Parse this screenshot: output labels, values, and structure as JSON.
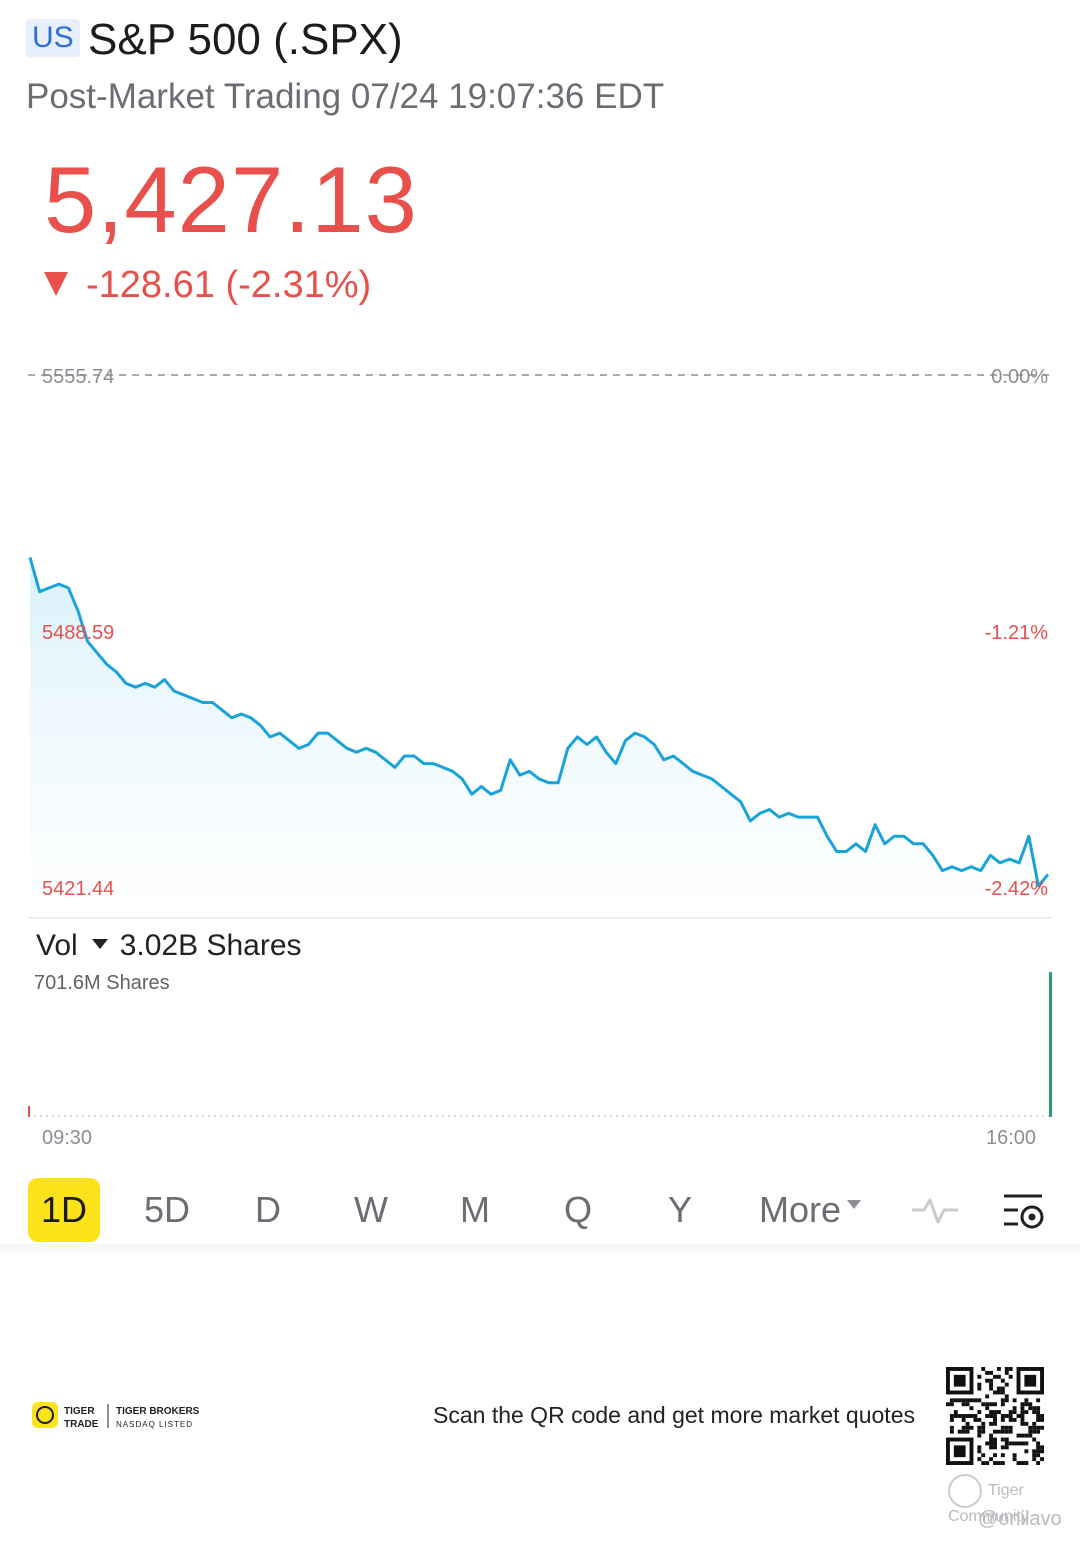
{
  "header": {
    "region": "US",
    "title": "S&P 500 (.SPX)",
    "session": "Post-Market Trading 07/24 19:07:36 EDT",
    "price": "5,427.13",
    "change": "-128.61 (-2.31%)"
  },
  "colors": {
    "down": "#e8504b",
    "line": "#1aa3d9",
    "active_period": "#fbe21a",
    "badge_bg": "#e6effb",
    "badge_text": "#2f6fd6"
  },
  "chart": {
    "left_top_label": "5555.74",
    "left_mid_label": "5488.59",
    "left_bottom_label": "5421.44",
    "right_top_label": "0.00%",
    "right_mid_label": "-1.21%",
    "right_bottom_label": "-2.42%"
  },
  "chart_data": {
    "type": "line",
    "ylim": [
      5421.44,
      5555.74
    ],
    "reference_line": 5555.74,
    "x_start": "09:30",
    "x_end": "16:00",
    "y": [
      5508,
      5499,
      5500,
      5501,
      5500,
      5494,
      5486,
      5483,
      5480,
      5478,
      5475,
      5474,
      5475,
      5474,
      5476,
      5473,
      5472,
      5471,
      5470,
      5470,
      5468,
      5466,
      5467,
      5466,
      5464,
      5461,
      5462,
      5460,
      5458,
      5459,
      5462,
      5462,
      5460,
      5458,
      5457,
      5458,
      5457,
      5455,
      5453,
      5456,
      5456,
      5454,
      5454,
      5453,
      5452,
      5450,
      5446,
      5448,
      5446,
      5447,
      5455,
      5451,
      5452,
      5450,
      5449,
      5449,
      5458,
      5461,
      5459,
      5461,
      5457,
      5454,
      5460,
      5462,
      5461,
      5459,
      5455,
      5456,
      5454,
      5452,
      5451,
      5450,
      5448,
      5446,
      5444,
      5439,
      5441,
      5442,
      5440,
      5441,
      5440,
      5440,
      5440,
      5435,
      5431,
      5431,
      5433,
      5431,
      5438,
      5433,
      5435,
      5435,
      5433,
      5433,
      5430,
      5426,
      5427,
      5426,
      5427,
      5426,
      5430,
      5428,
      5429,
      5428,
      5435,
      5422,
      5425
    ],
    "volume_label": "3.02B Shares",
    "volume_max_label": "701.6M Shares"
  },
  "volume": {
    "indicator": "Vol",
    "total": "3.02B Shares",
    "max": "701.6M Shares",
    "time_start": "09:30",
    "time_end": "16:00"
  },
  "periods": [
    "1D",
    "5D",
    "D",
    "W",
    "M",
    "Q",
    "Y",
    "More"
  ],
  "active_period": "1D",
  "icons": [
    "line-style-icon",
    "chart-settings-icon"
  ],
  "footer": {
    "brand1_top": "TIGER",
    "brand1_bottom": "TRADE",
    "brand2_top": "TIGER BROKERS",
    "brand2_bottom": "NASDAQ LISTED",
    "scan_text": "Scan the QR code and get more market quotes",
    "community": "Tiger Community",
    "handle": "@onilavo"
  }
}
